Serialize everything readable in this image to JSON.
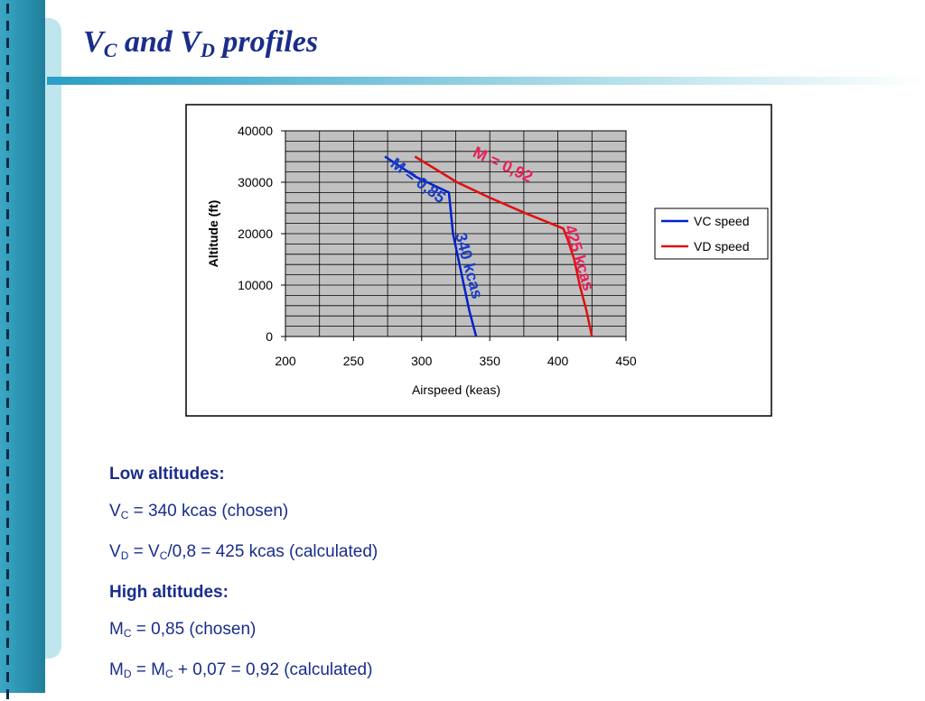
{
  "slide": {
    "title": {
      "v1": "V",
      "s1": "C",
      "mid": " and V",
      "s2": "D",
      "end": " profiles"
    },
    "colors": {
      "left_bar": "#1e7f9c",
      "title": "#1a2d8c",
      "vc": "#0022cc",
      "vd": "#e01010",
      "plot_bg": "#c0c0c0"
    }
  },
  "chart_data": {
    "type": "line",
    "xlabel": "Airspeed (keas)",
    "ylabel": "Altitude (ft)",
    "xlim": [
      200,
      450
    ],
    "ylim": [
      0,
      40000
    ],
    "xticks": [
      "200",
      "250",
      "300",
      "350",
      "400",
      "450"
    ],
    "yticks": [
      "0",
      "10000",
      "20000",
      "30000",
      "40000"
    ],
    "grid": true,
    "legend_position": "right",
    "series": [
      {
        "name": "VC speed",
        "color": "#0022cc",
        "x": [
          273,
          296,
          320,
          323,
          327,
          331,
          335,
          338,
          340
        ],
        "y": [
          35000,
          31000,
          28000,
          20000,
          15000,
          10000,
          5000,
          2000,
          0
        ]
      },
      {
        "name": "VD speed",
        "color": "#e01010",
        "x": [
          295,
          326,
          350,
          376,
          404,
          407,
          412,
          416,
          421,
          425
        ],
        "y": [
          35000,
          30000,
          27000,
          24000,
          21000,
          19000,
          15000,
          10000,
          5000,
          0
        ]
      }
    ],
    "annotations": [
      {
        "text": "M = 0,85",
        "color": "#1a3cc8",
        "x": 295,
        "y": 29500,
        "angle": 37
      },
      {
        "text": "M = 0,92",
        "color": "#e8205a",
        "x": 358,
        "y": 32500,
        "angle": 25
      },
      {
        "text": "340 kcas",
        "color": "#1a3cc8",
        "x": 331,
        "y": 13500,
        "angle": 75
      },
      {
        "text": "425 kcas",
        "color": "#e8205a",
        "x": 412,
        "y": 15000,
        "angle": 73
      }
    ]
  },
  "notes": {
    "low_heading": "Low altitudes:",
    "vc": {
      "a": "V",
      "sub": "C",
      "b": " = 340 kcas (chosen)"
    },
    "vd": {
      "a": "V",
      "sub1": "D",
      "b": " = V",
      "sub2": "C",
      "c": "/0,8 = 425 kcas (calculated)"
    },
    "high_heading": "High altitudes:",
    "mc": {
      "a": "M",
      "sub": "C",
      "b": " = 0,85 (chosen)"
    },
    "md": {
      "a": "M",
      "sub1": "D",
      "b": " = M",
      "sub2": "C",
      "c": " + 0,07 = 0,92 (calculated)"
    }
  }
}
